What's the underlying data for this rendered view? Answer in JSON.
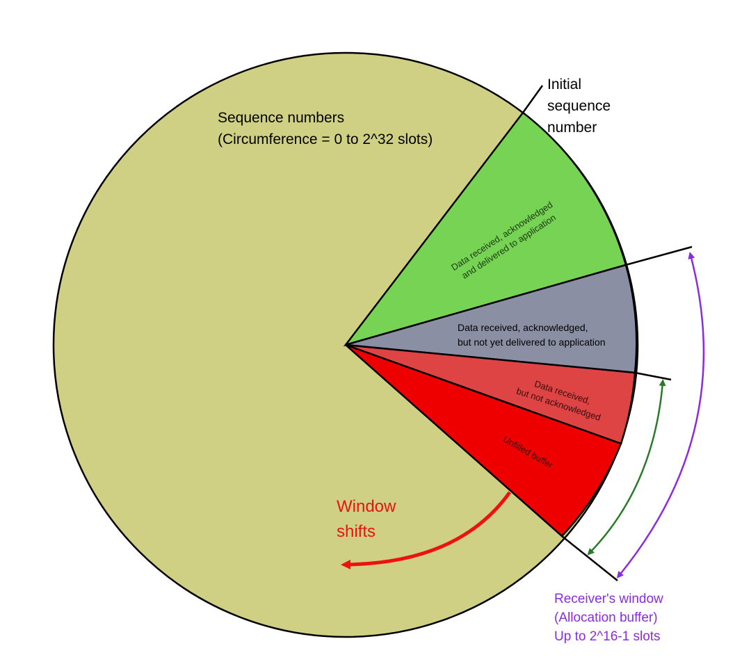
{
  "labels": {
    "title_line1": "Sequence numbers",
    "title_line2": "(Circumference = 0 to 2^32 slots)",
    "isn_line1": "Initial",
    "isn_line2": "sequence",
    "isn_line3": "number",
    "window_line1": "Window",
    "window_line2": "shifts",
    "recv_line1": "Receiver's window",
    "recv_line2": "(Allocation buffer)",
    "recv_line3": "Up to 2^16-1 slots"
  },
  "segments": {
    "green_line1": "Data received, acknowledged",
    "green_line2": "and delivered to application",
    "gray_line1": "Data received, acknowledged,",
    "gray_line2": "but not yet delivered to application",
    "pink_line1": "Data received,",
    "pink_line2": "but not acknowledged",
    "red_line1": "Unfilled buffer"
  },
  "colors": {
    "circle": "#d0d084",
    "green": "#77d353",
    "gray": "#8a8fa3",
    "pink": "#de4444",
    "red": "#ee0000",
    "outline": "#000000",
    "window_arrow": "#ee1111",
    "purple": "#8a2be2",
    "dark_green": "#2a7a2a"
  }
}
